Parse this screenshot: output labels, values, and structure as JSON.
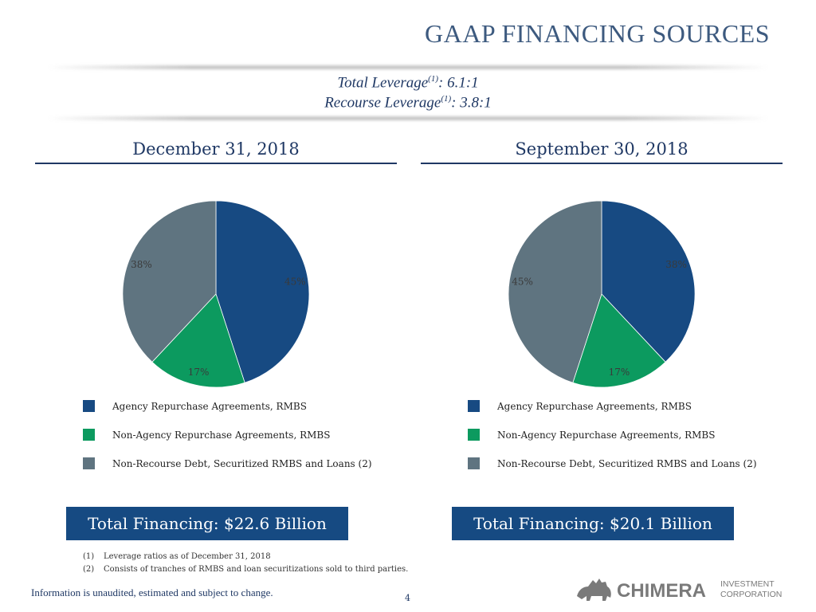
{
  "title": "GAAP FINANCING SOURCES",
  "leverage": {
    "total_label": "Total Leverage",
    "total_sup": "(1)",
    "total_value": ":  6.1:1",
    "recourse_label": "Recourse Leverage",
    "recourse_sup": "(1)",
    "recourse_value": ":  3.8:1"
  },
  "colors": {
    "agency": "#174a82",
    "non_agency": "#0c9a5f",
    "non_recourse": "#5f7480",
    "brand": "#1f3864"
  },
  "legend_items": [
    "Agency Repurchase Agreements, RMBS",
    "Non-Agency Repurchase Agreements, RMBS",
    "Non-Recourse Debt, Securitized RMBS and Loans (2)"
  ],
  "chart_data": [
    {
      "type": "pie",
      "title": "December 31, 2018",
      "categories": [
        "Agency Repurchase Agreements, RMBS",
        "Non-Agency Repurchase Agreements, RMBS",
        "Non-Recourse Debt, Securitized RMBS and Loans (2)"
      ],
      "values": [
        45,
        17,
        38
      ],
      "labels": [
        "45%",
        "17%",
        "38%"
      ],
      "legend": "bottom",
      "total": "Total Financing: $22.6 Billion"
    },
    {
      "type": "pie",
      "title": "September 30, 2018",
      "categories": [
        "Agency Repurchase Agreements, RMBS",
        "Non-Agency Repurchase Agreements, RMBS",
        "Non-Recourse Debt, Securitized RMBS and Loans (2)"
      ],
      "values": [
        38,
        17,
        45
      ],
      "labels": [
        "38%",
        "17%",
        "45%"
      ],
      "legend": "bottom",
      "total": "Total Financing: $20.1 Billion"
    }
  ],
  "footnotes": [
    {
      "num": "(1)",
      "text": "Leverage ratios as of December 31, 2018"
    },
    {
      "num": "(2)",
      "text": "Consists of tranches of RMBS and loan securitizations sold to third parties."
    }
  ],
  "disclaimer": "Information is unaudited, estimated and subject to change.",
  "page_number": "4",
  "logo": {
    "name": "CHIMERA",
    "line1": "INVESTMENT",
    "line2": "CORPORATION"
  }
}
